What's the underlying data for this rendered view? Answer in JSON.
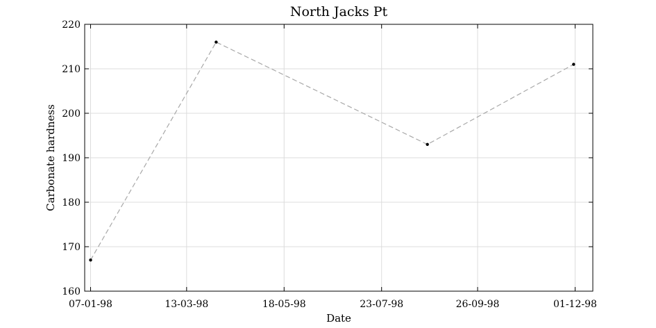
{
  "chart_data": {
    "type": "line",
    "title": "North Jacks Pt",
    "xlabel": "Date",
    "ylabel": "Carbonate hardness",
    "x_ticks": [
      "07-01-98",
      "13-03-98",
      "18-05-98",
      "23-07-98",
      "26-09-98",
      "01-12-98"
    ],
    "y_ticks": [
      "160",
      "170",
      "180",
      "190",
      "200",
      "210",
      "220"
    ],
    "xlim": [
      "1998-01-03",
      "1998-12-13"
    ],
    "ylim": [
      160,
      220
    ],
    "grid": true,
    "series": [
      {
        "x": [
          "1998-01-07",
          "1998-04-02",
          "1998-08-23",
          "1998-11-30"
        ],
        "y": [
          167,
          216,
          193,
          211
        ],
        "line_style": "dashed",
        "line_color": "#a8a8a8",
        "marker_color": "#000000"
      }
    ]
  }
}
